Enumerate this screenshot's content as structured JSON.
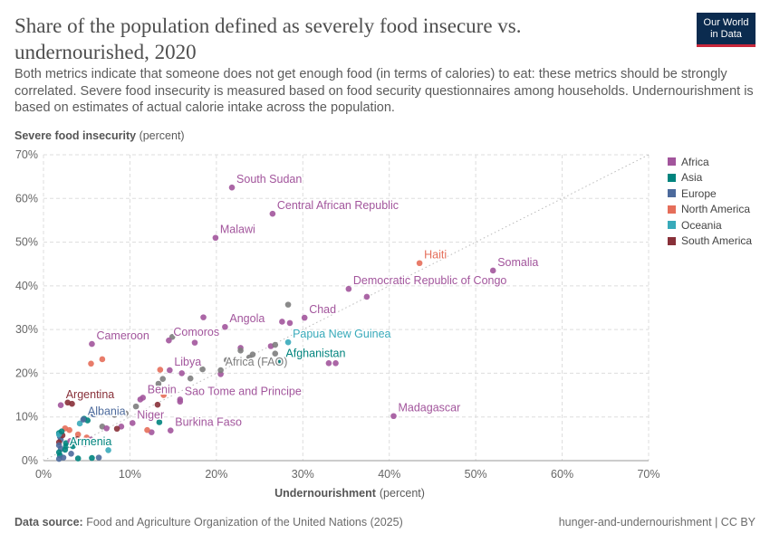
{
  "header": {
    "title": "Share of the population defined as severely food insecure vs. undernourished, 2020",
    "subtitle": "Both metrics indicate that someone does not get enough food (in terms of calories) to eat: these metrics should be strongly correlated. Severe food insecurity is measured based on food security questionnaires among households. Undernourishment is based on estimates of actual calorie intake across the population.",
    "logo_line1": "Our World",
    "logo_line2": "in Data"
  },
  "footer": {
    "source_label": "Data source:",
    "source_text": "Food and Agriculture Organization of the United Nations (2025)",
    "credit": "hunger-and-undernourishment | CC BY"
  },
  "colors": {
    "Africa": "#a2559c",
    "Asia": "#00847e",
    "Europe": "#4c6a9c",
    "North America": "#e56e5a",
    "Oceania": "#38aaba",
    "South America": "#883039",
    "Other": "#7d7d7d"
  },
  "chart_data": {
    "type": "scatter",
    "title": "Share of the population defined as severely food insecure vs. undernourished, 2020",
    "xlabel": "Undernourishment",
    "xlabel_unit": "(percent)",
    "ylabel": "Severe food insecurity",
    "ylabel_unit": "(percent)",
    "xlim": [
      0,
      70
    ],
    "ylim": [
      0,
      70
    ],
    "xticks": [
      0,
      10,
      20,
      30,
      40,
      50,
      60,
      70
    ],
    "yticks": [
      0,
      10,
      20,
      30,
      40,
      50,
      60,
      70
    ],
    "tick_suffix": "%",
    "grid": true,
    "legend_position": "right",
    "legend": [
      "Africa",
      "Asia",
      "Europe",
      "North America",
      "Oceania",
      "South America"
    ],
    "reference_line": "y = x",
    "labeled_points": [
      {
        "label": "South Sudan",
        "x": 21.8,
        "y": 62.5,
        "group": "Africa"
      },
      {
        "label": "Central African Republic",
        "x": 26.5,
        "y": 56.5,
        "group": "Africa"
      },
      {
        "label": "Malawi",
        "x": 19.9,
        "y": 51.0,
        "group": "Africa"
      },
      {
        "label": "Haiti",
        "x": 43.5,
        "y": 45.2,
        "group": "North America"
      },
      {
        "label": "Somalia",
        "x": 52.0,
        "y": 43.5,
        "group": "Africa"
      },
      {
        "label": "Democratic Republic of Congo",
        "x": 35.3,
        "y": 39.3,
        "group": "Africa"
      },
      {
        "label": "Chad",
        "x": 30.2,
        "y": 32.7,
        "group": "Africa"
      },
      {
        "label": "Angola",
        "x": 21.0,
        "y": 30.6,
        "group": "Africa"
      },
      {
        "label": "Comoros",
        "x": 14.5,
        "y": 27.5,
        "group": "Africa"
      },
      {
        "label": "Cameroon",
        "x": 5.6,
        "y": 26.7,
        "group": "Africa"
      },
      {
        "label": "Papua New Guinea",
        "x": 28.3,
        "y": 27.1,
        "group": "Oceania"
      },
      {
        "label": "Afghanistan",
        "x": 27.5,
        "y": 22.7,
        "group": "Asia"
      },
      {
        "label": "Libya",
        "x": 14.6,
        "y": 20.7,
        "group": "Africa"
      },
      {
        "label": "Africa (FAO)",
        "x": 20.5,
        "y": 20.7,
        "group": "Other"
      },
      {
        "label": "Sao Tome and Principe",
        "x": 15.8,
        "y": 14.0,
        "group": "Africa"
      },
      {
        "label": "Benin",
        "x": 11.5,
        "y": 14.4,
        "group": "Africa"
      },
      {
        "label": "Argentina",
        "x": 2.8,
        "y": 13.3,
        "group": "South America"
      },
      {
        "label": "Madagascar",
        "x": 40.5,
        "y": 10.2,
        "group": "Africa"
      },
      {
        "label": "Albania",
        "x": 4.6,
        "y": 9.4,
        "group": "Europe"
      },
      {
        "label": "Niger",
        "x": 10.3,
        "y": 8.6,
        "group": "Africa"
      },
      {
        "label": "Burkina Faso",
        "x": 14.7,
        "y": 6.9,
        "group": "Africa"
      },
      {
        "label": "Armenia",
        "x": 2.5,
        "y": 2.5,
        "group": "Asia"
      }
    ],
    "points": [
      {
        "x": 28.3,
        "y": 35.7,
        "group": "Other"
      },
      {
        "x": 37.4,
        "y": 37.5,
        "group": "Africa"
      },
      {
        "x": 18.5,
        "y": 32.8,
        "group": "Africa"
      },
      {
        "x": 27.6,
        "y": 31.8,
        "group": "Africa"
      },
      {
        "x": 28.5,
        "y": 31.5,
        "group": "Africa"
      },
      {
        "x": 17.5,
        "y": 27.0,
        "group": "Africa"
      },
      {
        "x": 14.9,
        "y": 28.3,
        "group": "Other"
      },
      {
        "x": 22.8,
        "y": 25.8,
        "group": "Africa"
      },
      {
        "x": 22.8,
        "y": 25.2,
        "group": "Other"
      },
      {
        "x": 26.3,
        "y": 26.2,
        "group": "Africa"
      },
      {
        "x": 26.8,
        "y": 26.5,
        "group": "Other"
      },
      {
        "x": 24.2,
        "y": 24.3,
        "group": "Other"
      },
      {
        "x": 23.8,
        "y": 23.6,
        "group": "Other"
      },
      {
        "x": 26.8,
        "y": 24.5,
        "group": "Other"
      },
      {
        "x": 33.0,
        "y": 22.3,
        "group": "Africa"
      },
      {
        "x": 33.8,
        "y": 22.3,
        "group": "Africa"
      },
      {
        "x": 27.3,
        "y": 22.6,
        "group": "Other"
      },
      {
        "x": 27.7,
        "y": 22.7,
        "group": "Asia"
      },
      {
        "x": 21.2,
        "y": 23.0,
        "group": "Other"
      },
      {
        "x": 18.4,
        "y": 20.9,
        "group": "Other"
      },
      {
        "x": 16.0,
        "y": 20.0,
        "group": "Africa"
      },
      {
        "x": 13.5,
        "y": 20.8,
        "group": "North America"
      },
      {
        "x": 5.5,
        "y": 22.2,
        "group": "North America"
      },
      {
        "x": 6.8,
        "y": 23.2,
        "group": "North America"
      },
      {
        "x": 20.5,
        "y": 19.8,
        "group": "Africa"
      },
      {
        "x": 17.0,
        "y": 18.8,
        "group": "Other"
      },
      {
        "x": 13.3,
        "y": 17.6,
        "group": "Other"
      },
      {
        "x": 13.8,
        "y": 18.7,
        "group": "Other"
      },
      {
        "x": 13.9,
        "y": 15.0,
        "group": "North America"
      },
      {
        "x": 15.8,
        "y": 13.5,
        "group": "Africa"
      },
      {
        "x": 11.2,
        "y": 14.0,
        "group": "Africa"
      },
      {
        "x": 10.7,
        "y": 12.4,
        "group": "Other"
      },
      {
        "x": 13.2,
        "y": 12.8,
        "group": "South America"
      },
      {
        "x": 9.5,
        "y": 10.8,
        "group": "Other"
      },
      {
        "x": 8.2,
        "y": 10.5,
        "group": "Other"
      },
      {
        "x": 5.8,
        "y": 10.6,
        "group": "Europe"
      },
      {
        "x": 9.0,
        "y": 7.8,
        "group": "Africa"
      },
      {
        "x": 8.5,
        "y": 7.3,
        "group": "South America"
      },
      {
        "x": 6.8,
        "y": 7.8,
        "group": "Other"
      },
      {
        "x": 7.3,
        "y": 7.4,
        "group": "Africa"
      },
      {
        "x": 12.5,
        "y": 6.5,
        "group": "Africa"
      },
      {
        "x": 12.0,
        "y": 7.0,
        "group": "North America"
      },
      {
        "x": 13.4,
        "y": 8.8,
        "group": "Asia"
      },
      {
        "x": 3.3,
        "y": 13.0,
        "group": "South America"
      },
      {
        "x": 2.0,
        "y": 12.7,
        "group": "Africa"
      },
      {
        "x": 2.5,
        "y": 7.4,
        "group": "North America"
      },
      {
        "x": 3.0,
        "y": 7.0,
        "group": "North America"
      },
      {
        "x": 4.0,
        "y": 6.0,
        "group": "North America"
      },
      {
        "x": 5.0,
        "y": 5.3,
        "group": "North America"
      },
      {
        "x": 5.5,
        "y": 4.8,
        "group": "Africa"
      },
      {
        "x": 4.2,
        "y": 8.5,
        "group": "Oceania"
      },
      {
        "x": 4.7,
        "y": 9.6,
        "group": "Asia"
      },
      {
        "x": 5.1,
        "y": 9.2,
        "group": "Asia"
      },
      {
        "x": 4.3,
        "y": 4.2,
        "group": "Oceania"
      },
      {
        "x": 5.6,
        "y": 4.0,
        "group": "Oceania"
      },
      {
        "x": 7.5,
        "y": 2.4,
        "group": "Oceania"
      },
      {
        "x": 1.8,
        "y": 6.3,
        "group": "Asia"
      },
      {
        "x": 1.9,
        "y": 5.5,
        "group": "Europe"
      },
      {
        "x": 2.0,
        "y": 4.8,
        "group": "Europe"
      },
      {
        "x": 1.8,
        "y": 4.2,
        "group": "South America"
      },
      {
        "x": 2.2,
        "y": 5.8,
        "group": "South America"
      },
      {
        "x": 2.6,
        "y": 4.0,
        "group": "Asia"
      },
      {
        "x": 3.1,
        "y": 4.5,
        "group": "Africa"
      },
      {
        "x": 3.4,
        "y": 3.3,
        "group": "Asia"
      },
      {
        "x": 3.9,
        "y": 4.9,
        "group": "South America"
      },
      {
        "x": 1.8,
        "y": 3.5,
        "group": "Europe"
      },
      {
        "x": 2.0,
        "y": 2.7,
        "group": "Europe"
      },
      {
        "x": 1.8,
        "y": 1.9,
        "group": "Asia"
      },
      {
        "x": 1.9,
        "y": 1.2,
        "group": "Asia"
      },
      {
        "x": 2.3,
        "y": 0.7,
        "group": "Europe"
      },
      {
        "x": 1.8,
        "y": 0.4,
        "group": "Europe"
      },
      {
        "x": 3.2,
        "y": 1.6,
        "group": "Europe"
      },
      {
        "x": 4.0,
        "y": 0.5,
        "group": "Asia"
      },
      {
        "x": 5.6,
        "y": 0.6,
        "group": "Asia"
      },
      {
        "x": 6.4,
        "y": 0.7,
        "group": "Europe"
      },
      {
        "x": 2.6,
        "y": 3.3,
        "group": "Asia"
      },
      {
        "x": 4.8,
        "y": 3.8,
        "group": "Africa"
      },
      {
        "x": 1.8,
        "y": 6.0,
        "group": "Oceania"
      },
      {
        "x": 2.1,
        "y": 6.7,
        "group": "Asia"
      }
    ]
  }
}
